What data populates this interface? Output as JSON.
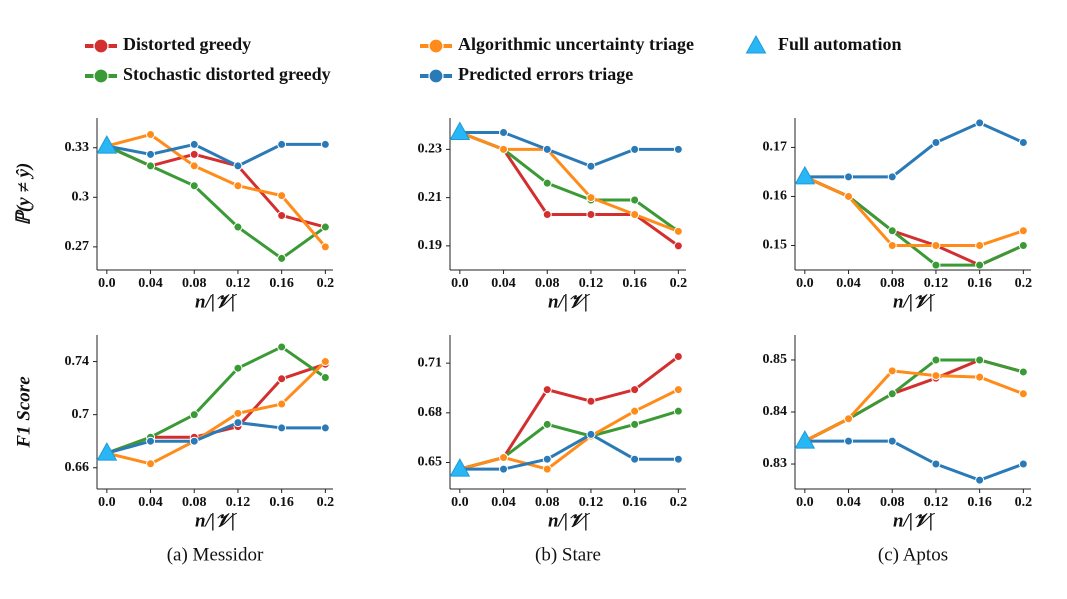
{
  "chart_data": [
    {
      "type": "line",
      "ylabel": "ℙ(y ≠ ŷ)",
      "xlabel": "n/|𝒱|",
      "x": [
        0,
        0.04,
        0.08,
        0.12,
        0.16,
        0.2
      ],
      "xlim": [
        -0.009,
        0.207
      ],
      "xticks": [
        {
          "value": 0,
          "label": "0.0"
        },
        0.04,
        0.08,
        0.12,
        0.16,
        0.2
      ],
      "ylim": [
        0.256,
        0.348
      ],
      "yticks": [
        0.27,
        0.3,
        0.33
      ],
      "series": [
        {
          "name": "Distorted greedy",
          "color": "#d32f2f",
          "values": [
            0.331,
            0.319,
            0.326,
            0.319,
            0.289,
            0.282
          ]
        },
        {
          "name": "Stochastic distorted greedy",
          "color": "#3a9a35",
          "values": [
            0.331,
            0.319,
            0.307,
            0.282,
            0.263,
            0.282
          ]
        },
        {
          "name": "Algorithmic uncertainty triage",
          "color": "#ff8c1a",
          "values": [
            0.331,
            0.338,
            0.319,
            0.307,
            0.301,
            0.27
          ]
        },
        {
          "name": "Predicted errors triage",
          "color": "#2a7ab8",
          "values": [
            0.331,
            0.326,
            0.332,
            0.319,
            0.332,
            0.332
          ]
        },
        {
          "name": "Full automation",
          "color": "#29b6f6",
          "marker": "triangle",
          "values": [
            0.331,
            null,
            null,
            null,
            null,
            null
          ]
        }
      ]
    },
    {
      "type": "line",
      "xlabel": "n/|𝒱|",
      "x": [
        0,
        0.04,
        0.08,
        0.12,
        0.16,
        0.2
      ],
      "xlim": [
        -0.009,
        0.207
      ],
      "xticks": [
        {
          "value": 0,
          "label": "0.0"
        },
        0.04,
        0.08,
        0.12,
        0.16,
        0.2
      ],
      "ylim": [
        0.18,
        0.243
      ],
      "yticks": [
        0.19,
        0.21,
        0.23
      ],
      "series": [
        {
          "color": "#d32f2f",
          "values": [
            0.237,
            0.23,
            0.203,
            0.203,
            0.203,
            0.19
          ]
        },
        {
          "color": "#3a9a35",
          "values": [
            0.237,
            0.23,
            0.216,
            0.209,
            0.209,
            0.196
          ]
        },
        {
          "color": "#ff8c1a",
          "values": [
            0.237,
            0.23,
            0.23,
            0.21,
            0.203,
            0.196
          ]
        },
        {
          "color": "#2a7ab8",
          "values": [
            0.237,
            0.237,
            0.23,
            0.223,
            0.23,
            0.23
          ]
        },
        {
          "color": "#29b6f6",
          "marker": "triangle",
          "values": [
            0.237,
            null,
            null,
            null,
            null,
            null
          ]
        }
      ]
    },
    {
      "type": "line",
      "xlabel": "n/|𝒱|",
      "x": [
        0,
        0.04,
        0.08,
        0.12,
        0.16,
        0.2
      ],
      "xlim": [
        -0.009,
        0.207
      ],
      "xticks": [
        {
          "value": 0,
          "label": "0.0"
        },
        0.04,
        0.08,
        0.12,
        0.16,
        0.2
      ],
      "ylim": [
        0.145,
        0.176
      ],
      "yticks": [
        0.15,
        0.16,
        0.17
      ],
      "series": [
        {
          "color": "#d32f2f",
          "values": [
            0.164,
            0.16,
            0.153,
            0.15,
            0.146,
            0.15
          ]
        },
        {
          "color": "#3a9a35",
          "values": [
            0.164,
            0.16,
            0.153,
            0.146,
            0.146,
            0.15
          ]
        },
        {
          "color": "#ff8c1a",
          "values": [
            0.164,
            0.16,
            0.15,
            0.15,
            0.15,
            0.153
          ]
        },
        {
          "color": "#2a7ab8",
          "values": [
            0.164,
            0.164,
            0.164,
            0.171,
            0.175,
            0.171
          ]
        },
        {
          "color": "#29b6f6",
          "marker": "triangle",
          "values": [
            0.164,
            null,
            null,
            null,
            null,
            null
          ]
        }
      ]
    },
    {
      "type": "line",
      "ylabel": "F1 Score",
      "xlabel": "n/|𝒱|",
      "caption": "(a) Messidor",
      "x": [
        0,
        0.04,
        0.08,
        0.12,
        0.16,
        0.2
      ],
      "xlim": [
        -0.009,
        0.207
      ],
      "xticks": [
        {
          "value": 0,
          "label": "0.0"
        },
        0.04,
        0.08,
        0.12,
        0.16,
        0.2
      ],
      "ylim": [
        0.644,
        0.76
      ],
      "yticks": [
        0.66,
        0.7,
        0.74
      ],
      "series": [
        {
          "color": "#d32f2f",
          "values": [
            0.671,
            0.683,
            0.683,
            0.691,
            0.727,
            0.738
          ]
        },
        {
          "color": "#3a9a35",
          "values": [
            0.671,
            0.683,
            0.7,
            0.735,
            0.751,
            0.728
          ]
        },
        {
          "color": "#ff8c1a",
          "values": [
            0.671,
            0.663,
            0.68,
            0.701,
            0.708,
            0.74
          ]
        },
        {
          "color": "#2a7ab8",
          "values": [
            0.671,
            0.68,
            0.68,
            0.694,
            0.69,
            0.69
          ]
        },
        {
          "color": "#29b6f6",
          "marker": "triangle",
          "values": [
            0.671,
            null,
            null,
            null,
            null,
            null
          ]
        }
      ]
    },
    {
      "type": "line",
      "xlabel": "n/|𝒱|",
      "caption": "(b) Stare",
      "x": [
        0,
        0.04,
        0.08,
        0.12,
        0.16,
        0.2
      ],
      "xlim": [
        -0.009,
        0.207
      ],
      "xticks": [
        {
          "value": 0,
          "label": "0.0"
        },
        0.04,
        0.08,
        0.12,
        0.16,
        0.2
      ],
      "ylim": [
        0.634,
        0.727
      ],
      "yticks": [
        0.65,
        0.68,
        0.71
      ],
      "series": [
        {
          "color": "#d32f2f",
          "values": [
            0.646,
            0.653,
            0.694,
            0.687,
            0.694,
            0.714
          ]
        },
        {
          "color": "#3a9a35",
          "values": [
            0.646,
            0.653,
            0.673,
            0.666,
            0.673,
            0.681
          ]
        },
        {
          "color": "#ff8c1a",
          "values": [
            0.646,
            0.653,
            0.646,
            0.666,
            0.681,
            0.694
          ]
        },
        {
          "color": "#2a7ab8",
          "values": [
            0.646,
            0.646,
            0.652,
            0.667,
            0.652,
            0.652
          ]
        },
        {
          "color": "#29b6f6",
          "marker": "triangle",
          "values": [
            0.646,
            null,
            null,
            null,
            null,
            null
          ]
        }
      ]
    },
    {
      "type": "line",
      "xlabel": "n/|𝒱|",
      "caption": "(c) Aptos",
      "x": [
        0,
        0.04,
        0.08,
        0.12,
        0.16,
        0.2
      ],
      "xlim": [
        -0.009,
        0.207
      ],
      "xticks": [
        {
          "value": 0,
          "label": "0.0"
        },
        0.04,
        0.08,
        0.12,
        0.16,
        0.2
      ],
      "ylim": [
        0.8252,
        0.8548
      ],
      "yticks": [
        0.83,
        0.84,
        0.85
      ],
      "series": [
        {
          "color": "#d32f2f",
          "values": [
            0.8344,
            0.8387,
            0.8435,
            0.8465,
            0.85,
            0.8477
          ]
        },
        {
          "color": "#3a9a35",
          "values": [
            0.8344,
            0.8387,
            0.8435,
            0.85,
            0.85,
            0.8477
          ]
        },
        {
          "color": "#ff8c1a",
          "values": [
            0.8344,
            0.8387,
            0.8479,
            0.847,
            0.8467,
            0.8435
          ]
        },
        {
          "color": "#2a7ab8",
          "values": [
            0.8344,
            0.8344,
            0.8344,
            0.83,
            0.8269,
            0.83
          ]
        },
        {
          "color": "#29b6f6",
          "marker": "triangle",
          "values": [
            0.8344,
            null,
            null,
            null,
            null,
            null
          ]
        }
      ]
    }
  ]
}
